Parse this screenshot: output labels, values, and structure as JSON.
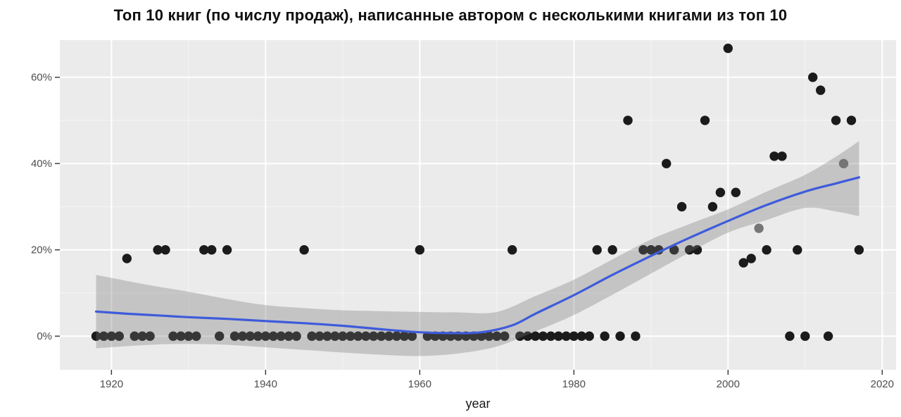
{
  "chart_data": {
    "type": "scatter",
    "title": "Топ 10 книг (по числу продаж), написанные автором с несколькими книгами из топ 10",
    "xlabel": "year",
    "ylabel": "",
    "legend": "none",
    "grid": "on",
    "x_range": [
      1913.3,
      2021.8
    ],
    "y_range": [
      -7.8,
      68.6
    ],
    "x_ticks": [
      1920,
      1940,
      1960,
      1980,
      2000,
      2020
    ],
    "x_tick_labels": [
      "1920",
      "1940",
      "1960",
      "1980",
      "2000",
      "2020"
    ],
    "x_minor": [
      1930,
      1950,
      1970,
      1990,
      2010
    ],
    "y_ticks": [
      0,
      20,
      40,
      60
    ],
    "y_tick_labels": [
      "0%",
      "20%",
      "40%",
      "60%"
    ],
    "y_minor": [
      10,
      30,
      50
    ],
    "panel_bg": "#ebebeb",
    "grid_color": "#ffffff",
    "point_color": "#1b1b1b",
    "muted_point_color": "#767676",
    "axis_text_color": "#4e4e4e",
    "axis_title_color": "#1a1a1a",
    "smooth_color": "#3d5bdb",
    "band_color": "rgba(115,115,115,0.32)",
    "points": [
      [
        1918,
        0
      ],
      [
        1919,
        0
      ],
      [
        1920,
        0
      ],
      [
        1921,
        0
      ],
      [
        1922,
        18
      ],
      [
        1923,
        0
      ],
      [
        1924,
        0
      ],
      [
        1925,
        0
      ],
      [
        1926,
        20
      ],
      [
        1927,
        20
      ],
      [
        1928,
        0
      ],
      [
        1929,
        0
      ],
      [
        1930,
        0
      ],
      [
        1931,
        0
      ],
      [
        1932,
        20
      ],
      [
        1933,
        20
      ],
      [
        1934,
        0
      ],
      [
        1935,
        20
      ],
      [
        1936,
        0
      ],
      [
        1937,
        0
      ],
      [
        1938,
        0
      ],
      [
        1939,
        0
      ],
      [
        1940,
        0
      ],
      [
        1941,
        0
      ],
      [
        1942,
        0
      ],
      [
        1943,
        0
      ],
      [
        1944,
        0
      ],
      [
        1945,
        20
      ],
      [
        1946,
        0
      ],
      [
        1947,
        0
      ],
      [
        1948,
        0
      ],
      [
        1949,
        0
      ],
      [
        1950,
        0
      ],
      [
        1951,
        0
      ],
      [
        1952,
        0
      ],
      [
        1953,
        0
      ],
      [
        1954,
        0
      ],
      [
        1955,
        0
      ],
      [
        1956,
        0
      ],
      [
        1957,
        0
      ],
      [
        1958,
        0
      ],
      [
        1959,
        0
      ],
      [
        1960,
        20
      ],
      [
        1961,
        0
      ],
      [
        1962,
        0
      ],
      [
        1963,
        0
      ],
      [
        1964,
        0
      ],
      [
        1965,
        0
      ],
      [
        1966,
        0
      ],
      [
        1967,
        0
      ],
      [
        1968,
        0
      ],
      [
        1969,
        0
      ],
      [
        1970,
        0
      ],
      [
        1971,
        0
      ],
      [
        1972,
        20
      ],
      [
        1973,
        0
      ],
      [
        1974,
        0
      ],
      [
        1975,
        0
      ],
      [
        1976,
        0
      ],
      [
        1977,
        0
      ],
      [
        1978,
        0
      ],
      [
        1979,
        0
      ],
      [
        1980,
        0
      ],
      [
        1981,
        0
      ],
      [
        1982,
        0
      ],
      [
        1983,
        20
      ],
      [
        1984,
        0
      ],
      [
        1985,
        20
      ],
      [
        1986,
        0
      ],
      [
        1987,
        50
      ],
      [
        1988,
        0
      ],
      [
        1989,
        20
      ],
      [
        1990,
        20
      ],
      [
        1991,
        20
      ],
      [
        1992,
        40
      ],
      [
        1993,
        20
      ],
      [
        1994,
        30
      ],
      [
        1995,
        20
      ],
      [
        1996,
        20
      ],
      [
        1997,
        50
      ],
      [
        1998,
        30
      ],
      [
        1999,
        33.3
      ],
      [
        2000,
        66.7
      ],
      [
        2001,
        33.3
      ],
      [
        2002,
        17
      ],
      [
        2003,
        18
      ],
      [
        2005,
        20
      ],
      [
        2006,
        41.7
      ],
      [
        2007,
        41.7
      ],
      [
        2008,
        0
      ],
      [
        2009,
        20
      ],
      [
        2010,
        0
      ],
      [
        2011,
        60
      ],
      [
        2012,
        57
      ],
      [
        2013,
        0
      ],
      [
        2014,
        50
      ],
      [
        2016,
        50
      ],
      [
        2017,
        20
      ]
    ],
    "muted_points": [
      [
        2004,
        25
      ],
      [
        2015,
        40
      ]
    ],
    "smooth_line": [
      [
        1918,
        5.7
      ],
      [
        1922,
        5.2
      ],
      [
        1926,
        4.8
      ],
      [
        1930,
        4.4
      ],
      [
        1935,
        4.0
      ],
      [
        1940,
        3.5
      ],
      [
        1945,
        3.0
      ],
      [
        1950,
        2.4
      ],
      [
        1955,
        1.6
      ],
      [
        1960,
        0.9
      ],
      [
        1964,
        0.7
      ],
      [
        1968,
        0.9
      ],
      [
        1972,
        2.5
      ],
      [
        1975,
        5.2
      ],
      [
        1980,
        9.5
      ],
      [
        1985,
        14.2
      ],
      [
        1990,
        18.6
      ],
      [
        1995,
        22.8
      ],
      [
        2000,
        26.7
      ],
      [
        2005,
        30.4
      ],
      [
        2010,
        33.5
      ],
      [
        2014,
        35.4
      ],
      [
        2017,
        36.8
      ]
    ],
    "band": [
      [
        1918,
        14.2,
        -2.8
      ],
      [
        1925,
        11.8,
        -2.0
      ],
      [
        1930,
        10.3,
        -1.8
      ],
      [
        1935,
        8.6,
        -2.0
      ],
      [
        1940,
        7.2,
        -2.6
      ],
      [
        1945,
        6.5,
        -3.2
      ],
      [
        1950,
        6.0,
        -3.8
      ],
      [
        1955,
        5.8,
        -4.3
      ],
      [
        1960,
        5.6,
        -4.6
      ],
      [
        1965,
        5.5,
        -4.0
      ],
      [
        1970,
        5.6,
        -2.4
      ],
      [
        1975,
        9.3,
        1.1
      ],
      [
        1980,
        13.1,
        4.9
      ],
      [
        1985,
        17.8,
        9.6
      ],
      [
        1990,
        22.4,
        14.5
      ],
      [
        1995,
        26.0,
        19.4
      ],
      [
        2000,
        29.4,
        24.0
      ],
      [
        2005,
        33.5,
        26.9
      ],
      [
        2010,
        37.4,
        29.7
      ],
      [
        2014,
        41.6,
        28.9
      ],
      [
        2017,
        45.2,
        27.8
      ]
    ]
  }
}
